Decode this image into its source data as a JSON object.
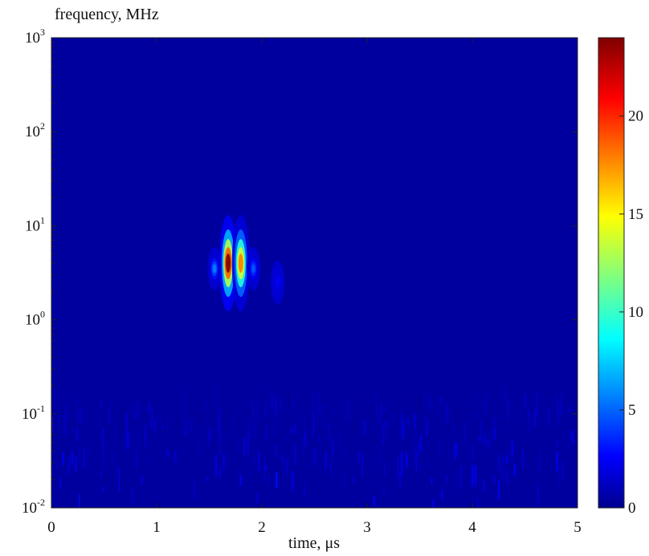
{
  "chart_data": {
    "type": "heatmap",
    "title": "",
    "xlabel": "time, μs",
    "ylabel": "frequency, MHz",
    "x_ticks": [
      "0",
      "1",
      "2",
      "3",
      "4",
      "5"
    ],
    "x_range": [
      0,
      5
    ],
    "y_scale": "log",
    "y_range": [
      0.01,
      1000
    ],
    "y_ticks": [
      {
        "base": "10",
        "exp": "-2"
      },
      {
        "base": "10",
        "exp": "-1"
      },
      {
        "base": "10",
        "exp": "0"
      },
      {
        "base": "10",
        "exp": "1"
      },
      {
        "base": "10",
        "exp": "2"
      },
      {
        "base": "10",
        "exp": "3"
      }
    ],
    "colorbar": {
      "range": [
        0,
        24
      ],
      "ticks": [
        "0",
        "5",
        "10",
        "15",
        "20"
      ],
      "colormap": "jet"
    },
    "background_color": "#00009f",
    "features": [
      {
        "label": "main peak",
        "time_us": 1.68,
        "freq_mhz": 4.0,
        "value": 24
      },
      {
        "label": "secondary peak",
        "time_us": 1.8,
        "freq_mhz": 4.0,
        "value": 18
      },
      {
        "label": "side lobe",
        "time_us": 1.55,
        "freq_mhz": 3.5,
        "value": 6
      },
      {
        "label": "side lobe",
        "time_us": 1.92,
        "freq_mhz": 3.5,
        "value": 5
      },
      {
        "label": "side lobe",
        "time_us": 2.15,
        "freq_mhz": 2.5,
        "value": 3
      }
    ],
    "low_frequency_noise": {
      "freq_range_mhz": [
        0.01,
        0.15
      ],
      "typical_value": 3
    }
  }
}
